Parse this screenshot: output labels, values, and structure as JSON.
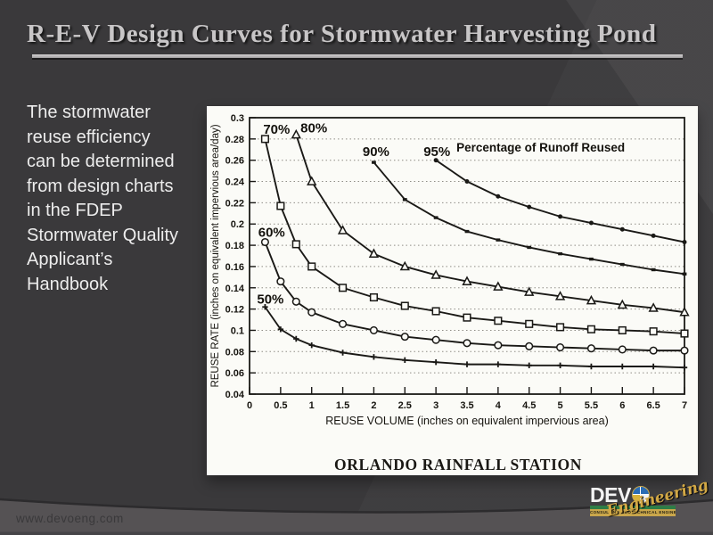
{
  "slide": {
    "title": "R-E-V Design Curves for Stormwater Harvesting Pond",
    "body_text": "The stormwater\nreuse efficiency\ncan be determined\nfrom design charts\nin the FDEP\nStormwater Quality\nApplicant’s\nHandbook",
    "footer": {
      "url": "www.devoeng.com"
    },
    "logo": {
      "wordmark": "DEV",
      "o_icon": "survey-target-icon",
      "script": "Engineering",
      "tagline": "CONSULTING GEOTECHNICAL ENGINEERS"
    },
    "colors": {
      "background": "#3a393b",
      "title_text": "#c8c6c7",
      "body_text": "#ededed",
      "footer_band": "#555254",
      "chart_panel": "#fbfbf7",
      "ink": "#1a1916",
      "logo_green": "#2e7d46",
      "logo_gold": "#c9a64b",
      "logo_blue": "#2a6cb5"
    }
  },
  "chart_data": {
    "type": "line",
    "title": "",
    "caption": "ORLANDO RAINFALL STATION",
    "annotation": "Percentage of Runoff Reused",
    "annotation_xy": [
      3.33,
      0.268
    ],
    "xlabel": "REUSE VOLUME (inches on equivalent impervious area)",
    "ylabel": "REUSE RATE (inches on equivalent impervious area/day)",
    "xlim": [
      0,
      7
    ],
    "ylim": [
      0.04,
      0.3
    ],
    "grid": "dotted-horizontal",
    "legend_position": "inline-curve-labels",
    "xticks": [
      0,
      0.5,
      1,
      1.5,
      2,
      2.5,
      3,
      3.5,
      4,
      4.5,
      5,
      5.5,
      6,
      6.5,
      7
    ],
    "xtick_labels": [
      "0",
      "0.5",
      "1",
      "1.5",
      "2",
      "2.5",
      "3",
      "3.5",
      "4",
      "4.5",
      "5",
      "5.5",
      "6",
      "6.5",
      "7"
    ],
    "yticks": [
      0.04,
      0.06,
      0.08,
      0.1,
      0.12,
      0.14,
      0.16,
      0.18,
      0.2,
      0.22,
      0.24,
      0.26,
      0.28,
      0.3
    ],
    "ytick_labels": [
      "0.04",
      "0.06",
      "0.08",
      "0.1",
      "0.12",
      "0.14",
      "0.16",
      "0.18",
      "0.2",
      "0.22",
      "0.24",
      "0.26",
      "0.28",
      "0.3"
    ],
    "grid_values": [
      0.06,
      0.08,
      0.1,
      0.12,
      0.14,
      0.16,
      0.18,
      0.2,
      0.22,
      0.24,
      0.26,
      0.28
    ],
    "series": [
      {
        "name": "50%",
        "marker": "plus",
        "label_xy": [
          0.12,
          0.125
        ],
        "x": [
          0.25,
          0.5,
          0.75,
          1,
          1.5,
          2,
          2.5,
          3,
          3.5,
          4,
          4.5,
          5,
          5.5,
          6,
          6.5,
          7
        ],
        "y": [
          0.122,
          0.101,
          0.092,
          0.086,
          0.079,
          0.075,
          0.072,
          0.07,
          0.068,
          0.068,
          0.067,
          0.067,
          0.066,
          0.066,
          0.066,
          0.065
        ]
      },
      {
        "name": "60%",
        "marker": "circle-open",
        "label_xy": [
          0.14,
          0.188
        ],
        "x": [
          0.25,
          0.5,
          0.75,
          1,
          1.5,
          2,
          2.5,
          3,
          3.5,
          4,
          4.5,
          5,
          5.5,
          6,
          6.5,
          7
        ],
        "y": [
          0.183,
          0.146,
          0.127,
          0.117,
          0.106,
          0.1,
          0.094,
          0.091,
          0.088,
          0.086,
          0.085,
          0.084,
          0.083,
          0.082,
          0.081,
          0.081
        ]
      },
      {
        "name": "70%",
        "marker": "square-open",
        "label_xy": [
          0.22,
          0.285
        ],
        "x": [
          0.25,
          0.5,
          0.75,
          1,
          1.5,
          2,
          2.5,
          3,
          3.5,
          4,
          4.5,
          5,
          5.5,
          6,
          6.5,
          7
        ],
        "y": [
          0.28,
          0.217,
          0.181,
          0.16,
          0.14,
          0.131,
          0.123,
          0.118,
          0.112,
          0.109,
          0.106,
          0.103,
          0.101,
          0.1,
          0.099,
          0.097
        ]
      },
      {
        "name": "80%",
        "marker": "triangle-open",
        "label_xy": [
          0.82,
          0.286
        ],
        "x": [
          0.75,
          1,
          1.5,
          2,
          2.5,
          3,
          3.5,
          4,
          4.5,
          5,
          5.5,
          6,
          6.5,
          7
        ],
        "y": [
          0.284,
          0.24,
          0.194,
          0.172,
          0.16,
          0.152,
          0.146,
          0.141,
          0.136,
          0.132,
          0.128,
          0.124,
          0.121,
          0.117
        ]
      },
      {
        "name": "90%",
        "marker": "dash-filled",
        "label_xy": [
          1.82,
          0.264
        ],
        "x": [
          2,
          2.5,
          3,
          3.5,
          4,
          4.5,
          5,
          5.5,
          6,
          6.5,
          7
        ],
        "y": [
          0.258,
          0.223,
          0.206,
          0.193,
          0.185,
          0.178,
          0.172,
          0.167,
          0.162,
          0.157,
          0.153
        ]
      },
      {
        "name": "95%",
        "marker": "circle-filled",
        "label_xy": [
          2.8,
          0.264
        ],
        "x": [
          3,
          3.5,
          4,
          4.5,
          5,
          5.5,
          6,
          6.5,
          7
        ],
        "y": [
          0.26,
          0.24,
          0.226,
          0.216,
          0.207,
          0.201,
          0.195,
          0.189,
          0.183
        ]
      }
    ]
  }
}
